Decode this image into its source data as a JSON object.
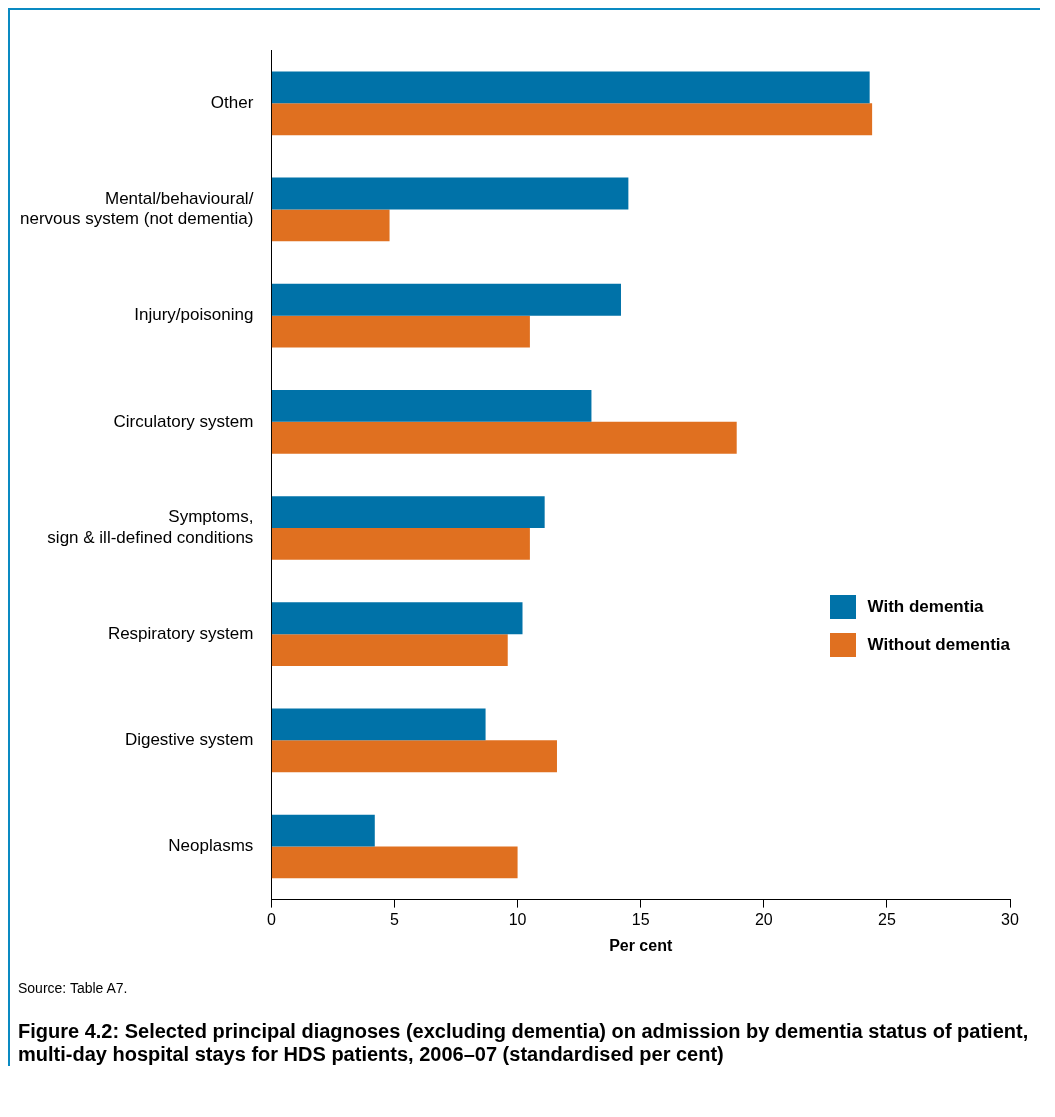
{
  "chart_data": {
    "type": "bar",
    "orientation": "horizontal",
    "title": "Figure 4.2: Selected principal diagnoses (excluding dementia) on admission by dementia status of patient, multi-day hospital stays for HDS patients, 2006–07 (standardised per cent)",
    "xlabel": "Per cent",
    "annotations": [
      "Source: Table A7."
    ],
    "categories": [
      "Other",
      "Mental/behavioural/\nnervous system (not dementia)",
      "Injury/poisoning",
      "Circulatory system",
      "Symptoms,\nsign & ill-defined conditions",
      "Respiratory system",
      "Digestive system",
      "Neoplasms"
    ],
    "series": [
      {
        "name": "With dementia",
        "color": "#0072a8",
        "values": [
          24.3,
          14.5,
          14.2,
          13.0,
          11.1,
          10.2,
          8.7,
          4.2
        ]
      },
      {
        "name": "Without dementia",
        "color": "#e07020",
        "values": [
          24.4,
          4.8,
          10.5,
          18.9,
          10.5,
          9.6,
          11.6,
          10.0
        ]
      }
    ],
    "xlim": [
      0,
      30
    ],
    "xticks": [
      0,
      5,
      10,
      15,
      20,
      25,
      30
    ],
    "grid": false,
    "legend": "right"
  }
}
